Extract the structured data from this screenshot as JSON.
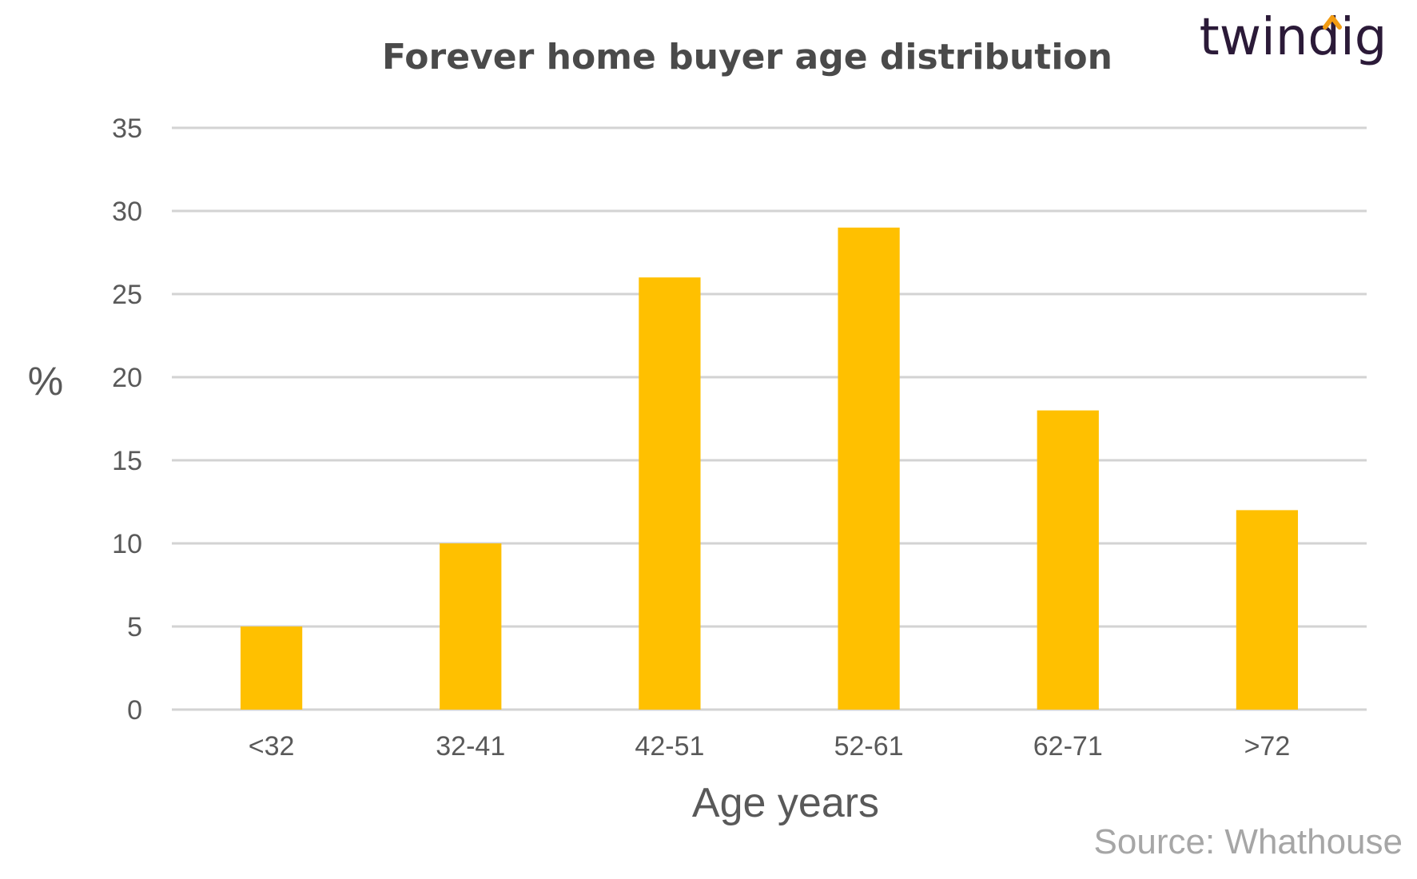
{
  "brand": {
    "logo_text": "twindig",
    "accent": "#f39c12",
    "text_color": "#2b1a38"
  },
  "source": "Source: Whathouse",
  "chart_data": {
    "type": "bar",
    "title": "Forever home buyer age distribution",
    "xlabel": "Age years",
    "ylabel": "%",
    "categories": [
      "<32",
      "32-41",
      "42-51",
      "52-61",
      "62-71",
      ">72"
    ],
    "values": [
      5,
      10,
      26,
      29,
      18,
      12
    ],
    "ylim": [
      0,
      35
    ],
    "yticks": [
      0,
      5,
      10,
      15,
      20,
      25,
      30,
      35
    ],
    "grid": true,
    "legend": "none",
    "bar_color": "#ffc000"
  }
}
